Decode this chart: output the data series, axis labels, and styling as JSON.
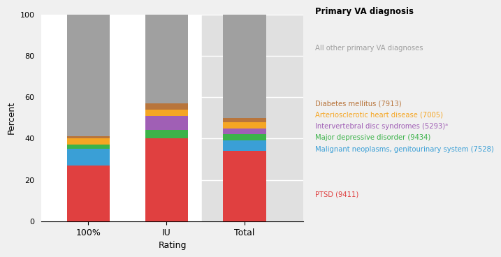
{
  "categories": [
    "100%",
    "IU",
    "Total"
  ],
  "series": [
    {
      "label": "PTSD (9411)",
      "color": "#e04040",
      "values": [
        27,
        40,
        34
      ]
    },
    {
      "label": "Malignant neoplasms, genitourinary system (7528)",
      "color": "#3a9fd6",
      "values": [
        8,
        0,
        5
      ]
    },
    {
      "label": "Major depressive disorder (9434)",
      "color": "#3cb34a",
      "values": [
        2,
        4,
        3
      ]
    },
    {
      "label": "Intervertebral disc syndromes (5293)ᵃ",
      "color": "#a05fb5",
      "values": [
        0,
        7,
        3
      ]
    },
    {
      "label": "Arteriosclerotic heart disease (7005)",
      "color": "#f5a623",
      "values": [
        3,
        3,
        3
      ]
    },
    {
      "label": "Diabetes mellitus (7913)",
      "color": "#b8753c",
      "values": [
        1,
        3,
        2
      ]
    },
    {
      "label": "All other primary VA diagnoses",
      "color": "#a0a0a0",
      "values": [
        59,
        43,
        50
      ]
    }
  ],
  "ylabel": "Percent",
  "xlabel": "Rating",
  "legend_title": "Primary VA diagnosis",
  "ylim": [
    0,
    100
  ],
  "yticks": [
    0,
    20,
    40,
    60,
    80,
    100
  ],
  "fig_bg": "#f0f0f0",
  "plot_bg": "#ffffff",
  "total_bg": "#e0e0e0",
  "legend_entries": [
    {
      "text": "All other primary VA diagnoses",
      "color": "#a0a0a0"
    },
    {
      "text": "Diabetes mellitus (7913)",
      "color": "#b8753c"
    },
    {
      "text": "Arteriosclerotic heart disease (7005)",
      "color": "#f5a623"
    },
    {
      "text": "Intervertebral disc syndromes (5293)ᵃ",
      "color": "#a05fb5"
    },
    {
      "text": "Major depressive disorder (9434)",
      "color": "#3cb34a"
    },
    {
      "text": "Malignant neoplasms, genitourinary system (7528)",
      "color": "#3a9fd6"
    },
    {
      "text": "PTSD (9411)",
      "color": "#e04040"
    }
  ],
  "legend_y_fracs": [
    0.82,
    0.6,
    0.555,
    0.51,
    0.465,
    0.42,
    0.24
  ],
  "bar_width": 0.55
}
